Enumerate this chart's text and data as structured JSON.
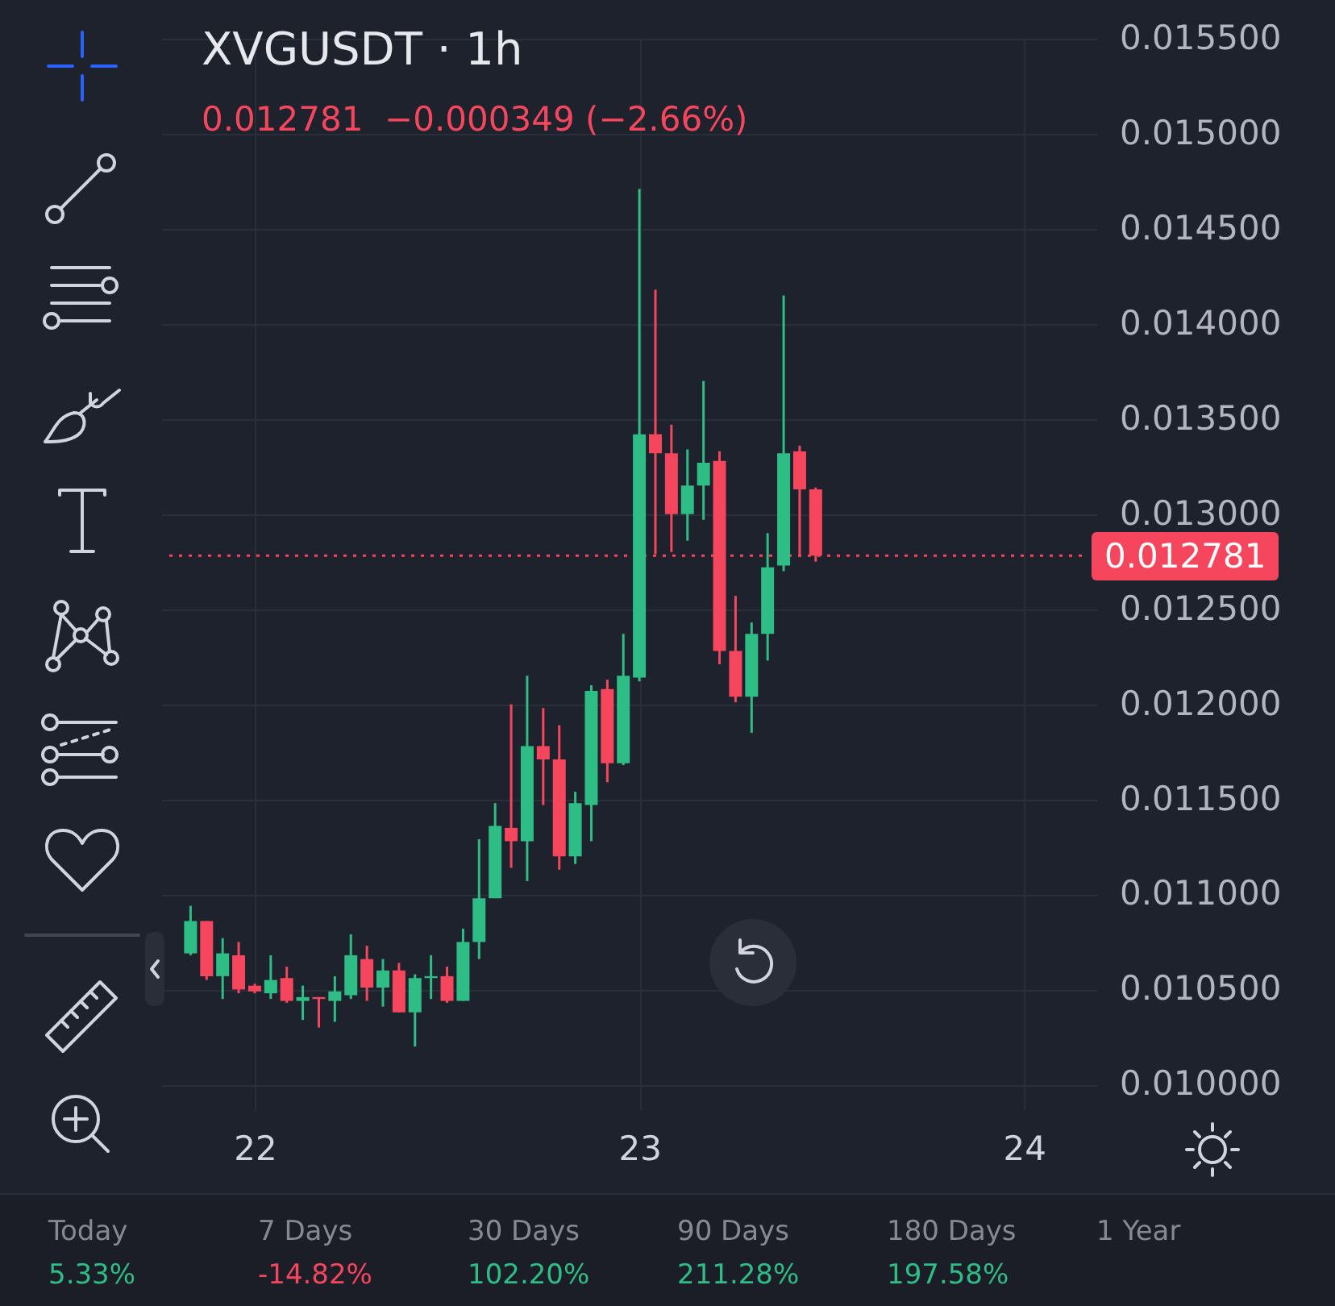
{
  "chart_data": {
    "type": "candlestick",
    "title": "XVGUSDT · 1h",
    "subtitle": "0.012781  −0.000349 (−2.66%)",
    "x": [
      21.8333,
      21.875,
      21.9167,
      21.9583,
      22,
      22.0417,
      22.0833,
      22.125,
      22.1667,
      22.2083,
      22.25,
      22.2917,
      22.3333,
      22.375,
      22.4167,
      22.4583,
      22.5,
      22.5417,
      22.5833,
      22.625,
      22.6667,
      22.7083,
      22.75,
      22.7917,
      22.8333,
      22.875,
      22.9167,
      22.9583,
      23,
      23.0417,
      23.0833,
      23.125,
      23.1667,
      23.2083,
      23.25,
      23.2917,
      23.3333,
      23.375,
      23.4167,
      23.4583
    ],
    "ohlc": [
      [
        0.01069,
        0.01094,
        0.01068,
        0.01086
      ],
      [
        0.01086,
        0.01086,
        0.01055,
        0.01057
      ],
      [
        0.01057,
        0.01077,
        0.01045,
        0.01069
      ],
      [
        0.01068,
        0.01075,
        0.01048,
        0.0105
      ],
      [
        0.01052,
        0.01053,
        0.01048,
        0.01049
      ],
      [
        0.01048,
        0.01068,
        0.01045,
        0.01055
      ],
      [
        0.01056,
        0.01062,
        0.01043,
        0.01044
      ],
      [
        0.01044,
        0.01052,
        0.01034,
        0.01046
      ],
      [
        0.01046,
        0.01046,
        0.0103,
        0.01045
      ],
      [
        0.01044,
        0.01057,
        0.01033,
        0.01049
      ],
      [
        0.01047,
        0.01079,
        0.01045,
        0.01068
      ],
      [
        0.01066,
        0.01073,
        0.01044,
        0.01051
      ],
      [
        0.01051,
        0.01066,
        0.01041,
        0.0106
      ],
      [
        0.0106,
        0.01064,
        0.01038,
        0.01038
      ],
      [
        0.01038,
        0.01058,
        0.0102,
        0.01056
      ],
      [
        0.01056,
        0.01068,
        0.01045,
        0.01057
      ],
      [
        0.01057,
        0.01062,
        0.01043,
        0.01044
      ],
      [
        0.01044,
        0.01082,
        0.01044,
        0.01075
      ],
      [
        0.01075,
        0.01129,
        0.01066,
        0.01098
      ],
      [
        0.01098,
        0.01148,
        0.01098,
        0.01136
      ],
      [
        0.01135,
        0.012,
        0.01114,
        0.01128
      ],
      [
        0.01128,
        0.01215,
        0.01107,
        0.01178
      ],
      [
        0.01178,
        0.01198,
        0.01147,
        0.01171
      ],
      [
        0.01171,
        0.01189,
        0.01113,
        0.0112
      ],
      [
        0.0112,
        0.01154,
        0.01116,
        0.01148
      ],
      [
        0.01147,
        0.0121,
        0.01128,
        0.01207
      ],
      [
        0.01208,
        0.01213,
        0.01159,
        0.01169
      ],
      [
        0.01169,
        0.01237,
        0.01168,
        0.01215
      ],
      [
        0.01214,
        0.01471,
        0.01212,
        0.01342
      ],
      [
        0.01342,
        0.01418,
        0.01279,
        0.01332
      ],
      [
        0.01332,
        0.01347,
        0.0128,
        0.013
      ],
      [
        0.013,
        0.01334,
        0.01286,
        0.01315
      ],
      [
        0.01315,
        0.0137,
        0.01297,
        0.01327
      ],
      [
        0.01328,
        0.01333,
        0.01221,
        0.01228
      ],
      [
        0.01228,
        0.01257,
        0.01201,
        0.01204
      ],
      [
        0.01204,
        0.01243,
        0.01185,
        0.01237
      ],
      [
        0.01237,
        0.0129,
        0.01223,
        0.01272
      ],
      [
        0.01273,
        0.01415,
        0.0127,
        0.01332
      ],
      [
        0.01333,
        0.01336,
        0.01278,
        0.01313
      ],
      [
        0.01313,
        0.01314,
        0.01275,
        0.012781
      ]
    ],
    "colors": [
      "#2ebd85",
      "#f6465d",
      "#2ebd85",
      "#f6465d",
      "#f6465d",
      "#2ebd85",
      "#f6465d",
      "#2ebd85",
      "#f6465d",
      "#2ebd85",
      "#2ebd85",
      "#f6465d",
      "#2ebd85",
      "#f6465d",
      "#2ebd85",
      "#2ebd85",
      "#f6465d",
      "#2ebd85",
      "#2ebd85",
      "#2ebd85",
      "#f6465d",
      "#2ebd85",
      "#f6465d",
      "#f6465d",
      "#2ebd85",
      "#2ebd85",
      "#f6465d",
      "#2ebd85",
      "#2ebd85",
      "#f6465d",
      "#f6465d",
      "#2ebd85",
      "#2ebd85",
      "#f6465d",
      "#f6465d",
      "#2ebd85",
      "#2ebd85",
      "#2ebd85",
      "#f6465d",
      "#f6465d"
    ],
    "xlim": [
      21.778,
      24.167
    ],
    "xticks": [
      22,
      23,
      24
    ],
    "ylim": [
      0.00987,
      0.0155
    ],
    "yticks": [
      {
        "value": 0.01,
        "label": "0.010000"
      },
      {
        "value": 0.0105,
        "label": "0.010500"
      },
      {
        "value": 0.011,
        "label": "0.011000"
      },
      {
        "value": 0.0115,
        "label": "0.011500"
      },
      {
        "value": 0.012,
        "label": "0.012000"
      },
      {
        "value": 0.0125,
        "label": "0.012500"
      },
      {
        "value": 0.013,
        "label": "0.013000"
      },
      {
        "value": 0.0135,
        "label": "0.013500"
      },
      {
        "value": 0.014,
        "label": "0.014000"
      },
      {
        "value": 0.0145,
        "label": "0.014500"
      },
      {
        "value": 0.015,
        "label": "0.015000"
      },
      {
        "value": 0.0155,
        "label": "0.015500"
      }
    ],
    "grid": true,
    "ref_lines": [
      {
        "axis": "y",
        "value": 0.012781,
        "label": "0.012781",
        "color": "#f6465d",
        "line_style": "dotted"
      }
    ],
    "annotations": [
      "Today",
      "5.33%",
      "7 Days",
      "-14.82%",
      "30 Days",
      "102.20%",
      "90 Days",
      "211.28%",
      "180 Days",
      "197.58%",
      "1 Year"
    ]
  }
}
